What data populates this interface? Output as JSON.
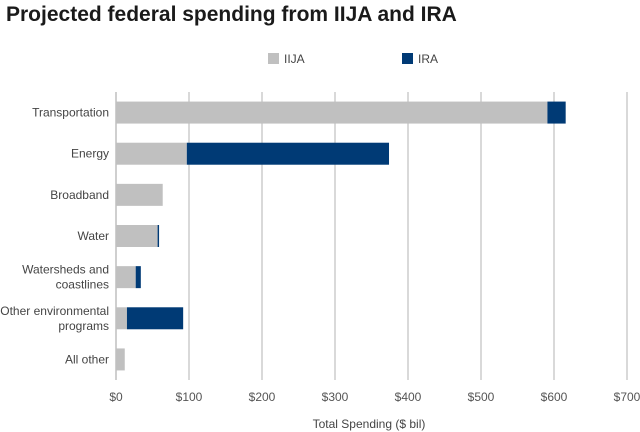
{
  "chart_data": {
    "type": "bar",
    "orientation": "horizontal",
    "stacked": true,
    "title": "Projected federal spending from IIJA and IRA",
    "xlabel": "Total Spending ($ bil)",
    "ylabel": "",
    "xlim": [
      0,
      700
    ],
    "grid": true,
    "legend_position": "top",
    "categories": [
      [
        "Transportation"
      ],
      [
        "Energy"
      ],
      [
        "Broadband"
      ],
      [
        "Water"
      ],
      [
        "Watersheds and",
        "coastlines"
      ],
      [
        "Other environmental",
        "programs"
      ],
      [
        "All other"
      ]
    ],
    "series": [
      {
        "name": "IIJA",
        "color": "#c0c0c0",
        "values": [
          591,
          97,
          64,
          57,
          27,
          15,
          12
        ]
      },
      {
        "name": "IRA",
        "color": "#003a75",
        "values": [
          25,
          277,
          0,
          2,
          7,
          77,
          0
        ]
      }
    ],
    "xticks": [
      {
        "value": 0,
        "label": "$0"
      },
      {
        "value": 100,
        "label": "$100"
      },
      {
        "value": 200,
        "label": "$200"
      },
      {
        "value": 300,
        "label": "$300"
      },
      {
        "value": 400,
        "label": "$400"
      },
      {
        "value": 500,
        "label": "$500"
      },
      {
        "value": 600,
        "label": "$600"
      },
      {
        "value": 700,
        "label": "$700"
      }
    ]
  }
}
